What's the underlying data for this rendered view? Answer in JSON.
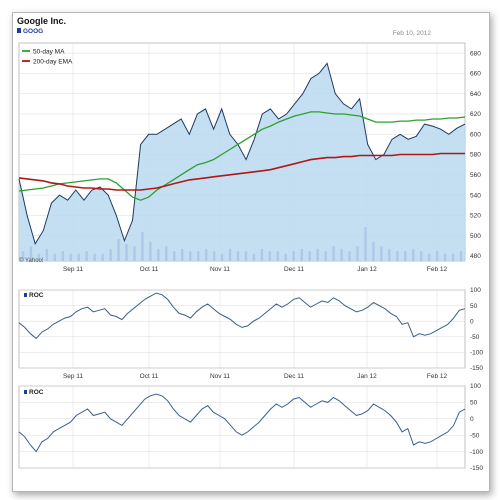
{
  "header": {
    "company": "Google Inc.",
    "ticker": "GOOG",
    "date": "Feb 10, 2012",
    "credit": "© Yahoo!"
  },
  "colors": {
    "price_fill": "#b9d9ef",
    "price_line": "#1e3a5f",
    "ma50": "#2ca02c",
    "ema200": "#b01818",
    "volume": "#7b5fc0",
    "roc_line": "#3a5f8f",
    "grid": "#d9d9d9",
    "ticker_square": "#1f3b9b"
  },
  "chart_data": [
    {
      "type": "area",
      "title": "Google Inc.",
      "legend": [
        "50-day MA",
        "200-day EMA"
      ],
      "legend_position": "top-left",
      "grid": true,
      "x_ticks": [
        "Sep 11",
        "Oct 11",
        "Nov 11",
        "Dec 11",
        "Jan 12",
        "Feb 12"
      ],
      "y_ticks": [
        480,
        500,
        520,
        540,
        560,
        580,
        600,
        620,
        640,
        660,
        680
      ],
      "ylim": [
        475,
        690
      ],
      "x": [
        0,
        3,
        6,
        9,
        12,
        15,
        18,
        21,
        24,
        27,
        30,
        33,
        36,
        39,
        42,
        45,
        48,
        51,
        54,
        57,
        60,
        63,
        66,
        69,
        72,
        75,
        78,
        81,
        84,
        87,
        90,
        93,
        96,
        99,
        102,
        105,
        108,
        111,
        114,
        117,
        120,
        123,
        126,
        129,
        132,
        135,
        138,
        141,
        144,
        147,
        150,
        153,
        156,
        159,
        162,
        165
      ],
      "series": [
        {
          "name": "price",
          "values": [
            556,
            520,
            492,
            505,
            532,
            540,
            535,
            545,
            535,
            545,
            548,
            540,
            520,
            495,
            515,
            590,
            600,
            600,
            605,
            610,
            615,
            600,
            620,
            625,
            605,
            625,
            600,
            590,
            575,
            595,
            620,
            625,
            615,
            620,
            630,
            640,
            655,
            660,
            670,
            640,
            630,
            625,
            635,
            590,
            575,
            580,
            595,
            600,
            595,
            598,
            610,
            608,
            605,
            600,
            606,
            610
          ]
        },
        {
          "name": "50-day MA",
          "values": [
            544,
            545,
            546,
            547,
            549,
            551,
            552,
            553,
            554,
            555,
            556,
            556,
            552,
            545,
            538,
            535,
            538,
            545,
            550,
            555,
            560,
            565,
            570,
            572,
            575,
            580,
            585,
            590,
            595,
            600,
            605,
            608,
            612,
            615,
            618,
            620,
            622,
            622,
            621,
            620,
            620,
            619,
            618,
            615,
            612,
            612,
            612,
            613,
            613,
            614,
            614,
            615,
            615,
            616,
            616,
            617
          ]
        },
        {
          "name": "200-day EMA",
          "values": [
            557,
            556,
            555,
            554,
            552,
            551,
            549,
            548,
            547,
            547,
            546,
            546,
            545,
            545,
            545,
            545,
            546,
            547,
            549,
            551,
            553,
            555,
            556,
            557,
            558,
            559,
            560,
            561,
            562,
            563,
            564,
            565,
            567,
            569,
            571,
            573,
            575,
            576,
            577,
            577,
            578,
            578,
            579,
            579,
            579,
            579,
            579,
            580,
            580,
            580,
            580,
            580,
            581,
            581,
            581,
            581
          ]
        },
        {
          "name": "volume",
          "values": [
            4,
            6,
            3,
            5,
            3,
            4,
            3,
            3,
            4,
            3,
            3,
            5,
            9,
            7,
            6,
            12,
            8,
            5,
            6,
            4,
            5,
            4,
            4,
            5,
            4,
            3,
            5,
            4,
            4,
            3,
            5,
            4,
            4,
            3,
            4,
            5,
            4,
            5,
            4,
            6,
            5,
            4,
            6,
            14,
            8,
            6,
            5,
            4,
            4,
            5,
            4,
            3,
            4,
            3,
            3,
            4
          ]
        }
      ]
    },
    {
      "type": "line",
      "title": "ROC",
      "x_ticks": [
        "Sep 11",
        "Oct 11",
        "Nov 11",
        "Dec 11",
        "Jan 12",
        "Feb 12"
      ],
      "y_ticks": [
        100,
        50,
        0,
        -50,
        -100,
        -150
      ],
      "ylim": [
        -150,
        100
      ],
      "series": [
        {
          "name": "ROC",
          "values": [
            -5,
            -20,
            -40,
            -55,
            -35,
            -25,
            -10,
            0,
            10,
            15,
            30,
            40,
            45,
            30,
            35,
            40,
            20,
            15,
            5,
            25,
            40,
            55,
            70,
            80,
            90,
            85,
            70,
            45,
            25,
            20,
            10,
            30,
            45,
            55,
            40,
            25,
            15,
            5,
            -10,
            -20,
            -15,
            0,
            10,
            25,
            40,
            55,
            45,
            55,
            70,
            75,
            60,
            45,
            55,
            65,
            60,
            75,
            65,
            50,
            40,
            30,
            35,
            45,
            60,
            50,
            40,
            25,
            15,
            -10,
            -5,
            -50,
            -40,
            -45,
            -40,
            -30,
            -20,
            -10,
            10,
            35,
            40
          ]
        }
      ]
    },
    {
      "type": "line",
      "title": "ROC",
      "x_ticks": [
        "Sep 11",
        "Oct 11",
        "Nov 11",
        "Dec 11",
        "Jan 12",
        "Feb 12"
      ],
      "y_ticks": [
        100,
        50,
        0,
        -50,
        -100,
        -150
      ],
      "ylim": [
        -150,
        100
      ],
      "series": [
        {
          "name": "ROC",
          "values": [
            -40,
            -55,
            -80,
            -100,
            -70,
            -60,
            -40,
            -30,
            -20,
            -10,
            10,
            20,
            30,
            10,
            15,
            20,
            0,
            -10,
            -20,
            0,
            20,
            40,
            60,
            70,
            75,
            70,
            55,
            30,
            10,
            0,
            -10,
            10,
            30,
            40,
            20,
            10,
            0,
            -20,
            -40,
            -50,
            -40,
            -25,
            -10,
            10,
            30,
            45,
            35,
            45,
            60,
            65,
            50,
            35,
            45,
            55,
            50,
            65,
            55,
            40,
            25,
            10,
            15,
            25,
            45,
            35,
            25,
            10,
            -10,
            -40,
            -30,
            -80,
            -70,
            -75,
            -70,
            -60,
            -50,
            -40,
            -20,
            20,
            30
          ]
        }
      ]
    }
  ]
}
